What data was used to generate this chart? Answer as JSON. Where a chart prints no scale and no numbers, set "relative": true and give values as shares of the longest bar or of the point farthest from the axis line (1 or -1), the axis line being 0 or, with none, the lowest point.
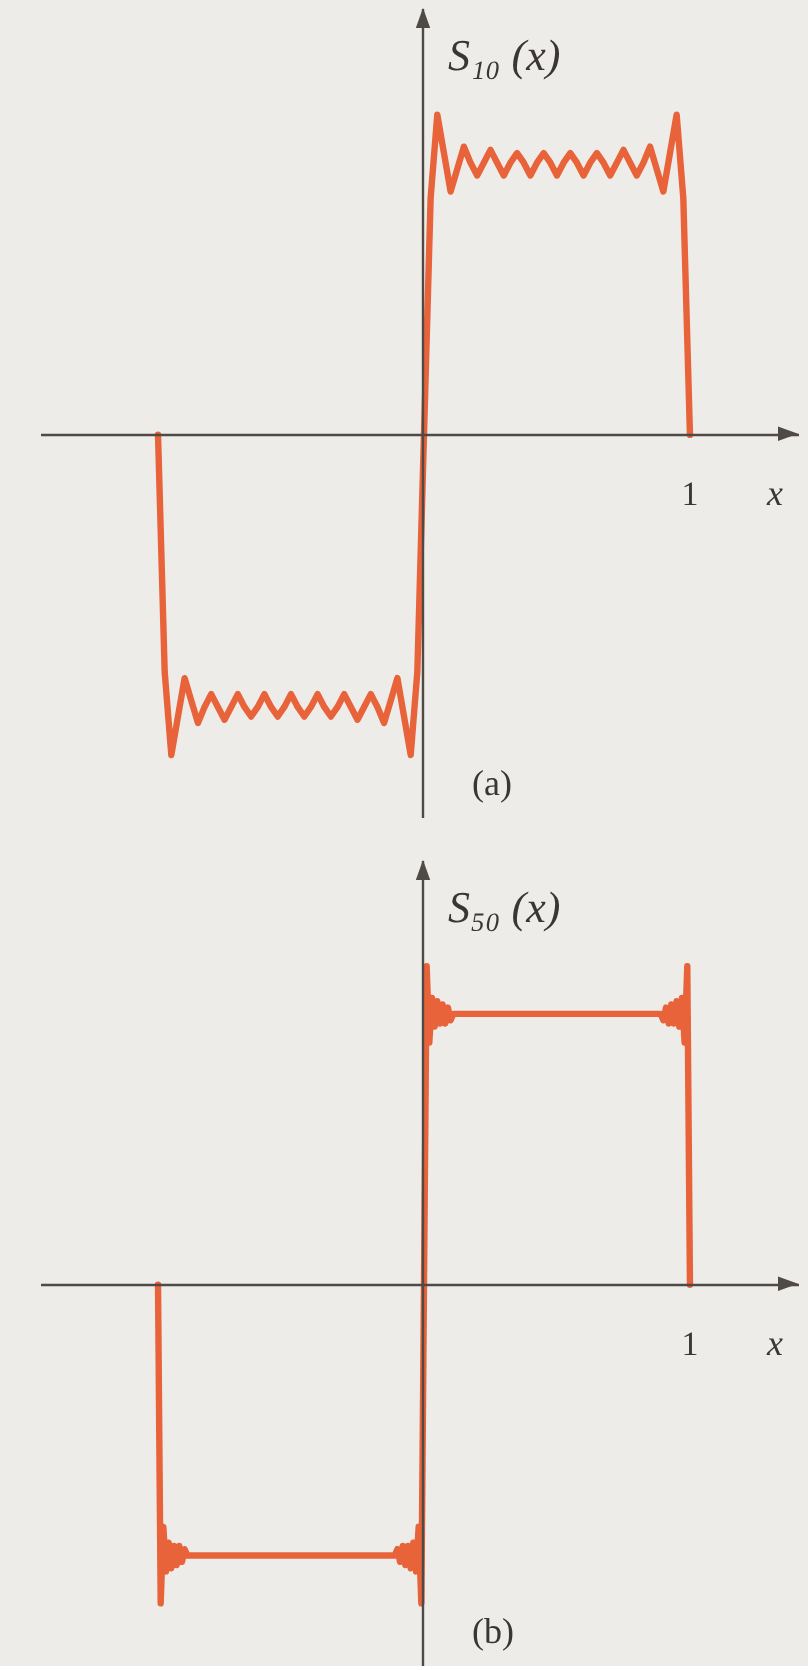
{
  "chart_data": [
    {
      "type": "line",
      "title": "(a)",
      "ylabel": "S₁₀ (x)",
      "xlabel": "x",
      "relative": true,
      "annotations": [
        "1"
      ],
      "categories": [
        null,
        null,
        null,
        null,
        null,
        null,
        null,
        null,
        null,
        null,
        null,
        null,
        null,
        null,
        null,
        null,
        null,
        null,
        null,
        null,
        null,
        null,
        null,
        null,
        null,
        null,
        null,
        null,
        null,
        null,
        null,
        null,
        null,
        null,
        null,
        null,
        null,
        null,
        null,
        null,
        null,
        null,
        null,
        null,
        null,
        null,
        null,
        null,
        null,
        null,
        null,
        null,
        null,
        null,
        null,
        null,
        null,
        null,
        null,
        null,
        null,
        null,
        null,
        null,
        null,
        null,
        null,
        null,
        null,
        null,
        null,
        null,
        null,
        null,
        null,
        null,
        null,
        null,
        null,
        null,
        null
      ],
      "series": [
        {
          "color": "#e8623a",
          "values": [
            0,
            -0.74,
            -1,
            -0.88,
            -0.76,
            -0.83,
            -0.9,
            -0.85,
            -0.81,
            -0.85,
            -0.89,
            -0.85,
            -0.81,
            -0.85,
            -0.88,
            -0.85,
            -0.81,
            -0.85,
            -0.88,
            -0.85,
            -0.81,
            -0.85,
            -0.88,
            -0.85,
            -0.81,
            -0.85,
            -0.88,
            -0.85,
            -0.81,
            -0.85,
            -0.89,
            -0.85,
            -0.81,
            -0.85,
            -0.9,
            -0.83,
            -0.76,
            -0.88,
            -1,
            -0.74,
            0,
            0.74,
            1,
            0.88,
            0.76,
            0.83,
            0.9,
            0.85,
            0.81,
            0.85,
            0.89,
            0.85,
            0.81,
            0.85,
            0.88,
            0.85,
            0.81,
            0.85,
            0.88,
            0.85,
            0.81,
            0.85,
            0.88,
            0.85,
            0.81,
            0.85,
            0.88,
            0.85,
            0.81,
            0.85,
            0.89,
            0.85,
            0.81,
            0.85,
            0.9,
            0.83,
            0.76,
            0.88,
            1,
            0.74,
            0
          ]
        }
      ]
    },
    {
      "type": "line",
      "title": "(b)",
      "ylabel": "S₅₀ (x)",
      "xlabel": "x",
      "relative": true,
      "annotations": [
        "1"
      ],
      "categories": [
        null,
        null,
        null,
        null,
        null,
        null,
        null,
        null,
        null,
        null,
        null,
        null,
        null,
        null,
        null,
        null,
        null,
        null,
        null,
        null,
        null,
        null,
        null,
        null,
        null,
        null,
        null,
        null,
        null,
        null,
        null,
        null,
        null,
        null,
        null,
        null,
        null,
        null,
        null,
        null,
        null,
        null,
        null,
        null,
        null,
        null,
        null,
        null,
        null,
        null,
        null,
        null,
        null,
        null,
        null,
        null,
        null,
        null,
        null,
        null,
        null,
        null,
        null,
        null,
        null,
        null,
        null,
        null,
        null,
        null,
        null,
        null,
        null,
        null,
        null,
        null,
        null,
        null,
        null,
        null,
        null,
        null,
        null,
        null,
        null,
        null,
        null,
        null,
        null,
        null,
        null,
        null,
        null,
        null,
        null,
        null,
        null,
        null,
        null,
        null,
        null,
        null,
        null,
        null,
        null,
        null,
        null,
        null,
        null,
        null,
        null,
        null,
        null,
        null,
        null,
        null,
        null,
        null,
        null,
        null,
        null,
        null,
        null,
        null,
        null,
        null,
        null,
        null,
        null,
        null,
        null,
        null,
        null,
        null,
        null,
        null,
        null,
        null,
        null,
        null,
        null,
        null,
        null,
        null,
        null,
        null,
        null,
        null,
        null,
        null,
        null,
        null,
        null,
        null,
        null,
        null,
        null,
        null,
        null,
        null,
        null,
        null,
        null,
        null,
        null,
        null,
        null,
        null,
        null,
        null,
        null,
        null,
        null,
        null,
        null,
        null,
        null,
        null,
        null,
        null,
        null,
        null,
        null,
        null,
        null,
        null,
        null,
        null,
        null,
        null,
        null,
        null,
        null,
        null,
        null,
        null,
        null,
        null,
        null,
        null,
        null
      ],
      "series": [
        {
          "color": "#e8623a",
          "values": [
            0,
            -1,
            -0.76,
            -0.9,
            -0.81,
            -0.89,
            -0.82,
            -0.88,
            -0.82,
            -0.87,
            -0.83,
            -0.85,
            -0.85,
            -0.85,
            -0.85,
            -0.85,
            -0.85,
            -0.85,
            -0.85,
            -0.85,
            -0.85,
            -0.85,
            -0.85,
            -0.85,
            -0.85,
            -0.85,
            -0.85,
            -0.85,
            -0.85,
            -0.85,
            -0.85,
            -0.85,
            -0.85,
            -0.85,
            -0.85,
            -0.85,
            -0.85,
            -0.85,
            -0.85,
            -0.85,
            -0.85,
            -0.85,
            -0.85,
            -0.85,
            -0.85,
            -0.85,
            -0.85,
            -0.85,
            -0.85,
            -0.85,
            -0.85,
            -0.85,
            -0.85,
            -0.85,
            -0.85,
            -0.85,
            -0.85,
            -0.85,
            -0.85,
            -0.85,
            -0.85,
            -0.85,
            -0.85,
            -0.85,
            -0.85,
            -0.85,
            -0.85,
            -0.85,
            -0.85,
            -0.85,
            -0.85,
            -0.85,
            -0.85,
            -0.85,
            -0.85,
            -0.85,
            -0.85,
            -0.85,
            -0.85,
            -0.85,
            -0.85,
            -0.85,
            -0.85,
            -0.85,
            -0.85,
            -0.85,
            -0.85,
            -0.85,
            -0.85,
            -0.85,
            -0.83,
            -0.87,
            -0.82,
            -0.88,
            -0.82,
            -0.89,
            -0.81,
            -0.9,
            -0.76,
            -1,
            0,
            1,
            0.76,
            0.9,
            0.81,
            0.89,
            0.82,
            0.88,
            0.82,
            0.87,
            0.83,
            0.85,
            0.85,
            0.85,
            0.85,
            0.85,
            0.85,
            0.85,
            0.85,
            0.85,
            0.85,
            0.85,
            0.85,
            0.85,
            0.85,
            0.85,
            0.85,
            0.85,
            0.85,
            0.85,
            0.85,
            0.85,
            0.85,
            0.85,
            0.85,
            0.85,
            0.85,
            0.85,
            0.85,
            0.85,
            0.85,
            0.85,
            0.85,
            0.85,
            0.85,
            0.85,
            0.85,
            0.85,
            0.85,
            0.85,
            0.85,
            0.85,
            0.85,
            0.85,
            0.85,
            0.85,
            0.85,
            0.85,
            0.85,
            0.85,
            0.85,
            0.85,
            0.85,
            0.85,
            0.85,
            0.85,
            0.85,
            0.85,
            0.85,
            0.85,
            0.85,
            0.85,
            0.85,
            0.85,
            0.85,
            0.85,
            0.85,
            0.85,
            0.85,
            0.85,
            0.85,
            0.85,
            0.85,
            0.85,
            0.85,
            0.85,
            0.85,
            0.85,
            0.85,
            0.85,
            0.83,
            0.87,
            0.82,
            0.88,
            0.82,
            0.89,
            0.81,
            0.9,
            0.76,
            1,
            0
          ]
        }
      ]
    }
  ]
}
